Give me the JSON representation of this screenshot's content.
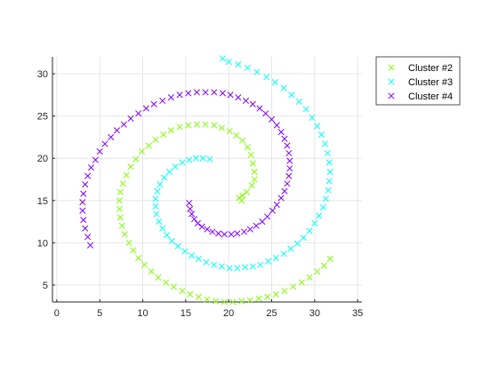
{
  "chart_data": {
    "type": "scatter",
    "title": "",
    "xlabel": "",
    "ylabel": "",
    "xlim": [
      -0.5,
      35.5
    ],
    "ylim": [
      3,
      32
    ],
    "xticks": [
      0,
      5,
      10,
      15,
      20,
      25,
      30,
      35
    ],
    "yticks": [
      5,
      10,
      15,
      20,
      25,
      30
    ],
    "grid": true,
    "legend": "top-right-outside",
    "marker": "x",
    "series": [
      {
        "name": "Cluster #2",
        "color": "#80ff00",
        "points": [
          [
            21.5,
            15.0
          ],
          [
            21.2,
            15.3
          ],
          [
            21.6,
            15.6
          ],
          [
            22.1,
            16.0
          ],
          [
            22.7,
            16.8
          ],
          [
            23.0,
            17.5
          ],
          [
            23.0,
            18.4
          ],
          [
            22.8,
            19.4
          ],
          [
            22.6,
            20.4
          ],
          [
            22.2,
            21.3
          ],
          [
            21.6,
            22.1
          ],
          [
            20.9,
            22.7
          ],
          [
            20.1,
            23.2
          ],
          [
            19.2,
            23.6
          ],
          [
            18.3,
            23.9
          ],
          [
            17.3,
            24.0
          ],
          [
            16.3,
            24.0
          ],
          [
            15.3,
            23.9
          ],
          [
            14.3,
            23.7
          ],
          [
            13.3,
            23.3
          ],
          [
            12.4,
            22.8
          ],
          [
            11.5,
            22.2
          ],
          [
            10.7,
            21.5
          ],
          [
            9.9,
            20.8
          ],
          [
            9.2,
            19.9
          ],
          [
            8.6,
            19.0
          ],
          [
            8.1,
            18.0
          ],
          [
            7.7,
            17.0
          ],
          [
            7.4,
            16.0
          ],
          [
            7.3,
            15.0
          ],
          [
            7.3,
            14.0
          ],
          [
            7.4,
            13.0
          ],
          [
            7.6,
            12.0
          ],
          [
            7.9,
            11.0
          ],
          [
            8.4,
            10.0
          ],
          [
            8.9,
            9.1
          ],
          [
            9.5,
            8.2
          ],
          [
            10.2,
            7.4
          ],
          [
            11.0,
            6.6
          ],
          [
            11.8,
            5.9
          ],
          [
            12.7,
            5.3
          ],
          [
            13.6,
            4.8
          ],
          [
            14.6,
            4.3
          ],
          [
            15.5,
            3.9
          ],
          [
            16.5,
            3.6
          ],
          [
            17.5,
            3.3
          ],
          [
            18.5,
            3.1
          ],
          [
            19.5,
            3.0
          ],
          [
            20.5,
            3.0
          ],
          [
            21.5,
            3.1
          ],
          [
            22.5,
            3.2
          ],
          [
            23.5,
            3.4
          ],
          [
            24.5,
            3.6
          ],
          [
            25.5,
            3.9
          ],
          [
            26.5,
            4.3
          ],
          [
            27.5,
            4.8
          ],
          [
            28.5,
            5.3
          ],
          [
            29.4,
            5.9
          ],
          [
            30.3,
            6.6
          ],
          [
            31.1,
            7.3
          ],
          [
            31.8,
            8.1
          ]
        ]
      },
      {
        "name": "Cluster #3",
        "color": "#00ffff",
        "points": [
          [
            17.8,
            19.9
          ],
          [
            17.0,
            20.0
          ],
          [
            16.2,
            20.0
          ],
          [
            15.4,
            19.8
          ],
          [
            14.6,
            19.5
          ],
          [
            13.8,
            19.0
          ],
          [
            13.1,
            18.4
          ],
          [
            12.5,
            17.7
          ],
          [
            12.0,
            16.9
          ],
          [
            11.7,
            16.1
          ],
          [
            11.5,
            15.2
          ],
          [
            11.5,
            14.3
          ],
          [
            11.6,
            13.4
          ],
          [
            11.9,
            12.5
          ],
          [
            12.3,
            11.7
          ],
          [
            12.8,
            10.9
          ],
          [
            13.4,
            10.2
          ],
          [
            14.1,
            9.6
          ],
          [
            14.9,
            9.0
          ],
          [
            15.7,
            8.5
          ],
          [
            16.5,
            8.1
          ],
          [
            17.4,
            7.7
          ],
          [
            18.3,
            7.4
          ],
          [
            19.2,
            7.2
          ],
          [
            20.1,
            7.0
          ],
          [
            21.0,
            7.0
          ],
          [
            21.9,
            7.1
          ],
          [
            22.8,
            7.2
          ],
          [
            23.7,
            7.4
          ],
          [
            24.6,
            7.8
          ],
          [
            25.5,
            8.2
          ],
          [
            26.4,
            8.7
          ],
          [
            27.2,
            9.3
          ],
          [
            28.0,
            9.9
          ],
          [
            28.7,
            10.6
          ],
          [
            29.4,
            11.4
          ],
          [
            30.0,
            12.3
          ],
          [
            30.5,
            13.2
          ],
          [
            31.0,
            14.2
          ],
          [
            31.3,
            15.2
          ],
          [
            31.6,
            16.2
          ],
          [
            31.7,
            17.3
          ],
          [
            31.8,
            18.4
          ],
          [
            31.7,
            19.5
          ],
          [
            31.5,
            20.6
          ],
          [
            31.2,
            21.7
          ],
          [
            30.8,
            22.8
          ],
          [
            30.3,
            23.8
          ],
          [
            29.7,
            24.8
          ],
          [
            29.0,
            25.8
          ],
          [
            28.2,
            26.7
          ],
          [
            27.3,
            27.5
          ],
          [
            26.4,
            28.3
          ],
          [
            25.4,
            29.0
          ],
          [
            24.4,
            29.6
          ],
          [
            23.3,
            30.2
          ],
          [
            22.2,
            30.7
          ],
          [
            21.1,
            31.1
          ],
          [
            20.0,
            31.4
          ],
          [
            19.3,
            31.8
          ]
        ]
      },
      {
        "name": "Cluster #4",
        "color": "#8000ff",
        "points": [
          [
            15.4,
            14.7
          ],
          [
            15.5,
            14.0
          ],
          [
            15.7,
            13.4
          ],
          [
            16.0,
            12.8
          ],
          [
            16.4,
            12.3
          ],
          [
            16.9,
            11.9
          ],
          [
            17.5,
            11.6
          ],
          [
            18.1,
            11.3
          ],
          [
            18.8,
            11.1
          ],
          [
            19.5,
            11.0
          ],
          [
            20.3,
            11.0
          ],
          [
            21.0,
            11.1
          ],
          [
            21.8,
            11.3
          ],
          [
            22.5,
            11.6
          ],
          [
            23.2,
            12.0
          ],
          [
            23.9,
            12.5
          ],
          [
            24.5,
            13.1
          ],
          [
            25.1,
            13.8
          ],
          [
            25.6,
            14.5
          ],
          [
            26.1,
            15.3
          ],
          [
            26.5,
            16.1
          ],
          [
            26.8,
            17.0
          ],
          [
            27.0,
            17.9
          ],
          [
            27.1,
            18.8
          ],
          [
            27.1,
            19.7
          ],
          [
            27.0,
            20.6
          ],
          [
            26.8,
            21.5
          ],
          [
            26.5,
            22.3
          ],
          [
            26.1,
            23.1
          ],
          [
            25.6,
            23.9
          ],
          [
            25.0,
            24.6
          ],
          [
            24.3,
            25.3
          ],
          [
            23.6,
            25.9
          ],
          [
            22.8,
            26.4
          ],
          [
            22.0,
            26.8
          ],
          [
            21.1,
            27.2
          ],
          [
            20.2,
            27.5
          ],
          [
            19.3,
            27.7
          ],
          [
            18.3,
            27.8
          ],
          [
            17.3,
            27.8
          ],
          [
            16.3,
            27.8
          ],
          [
            15.3,
            27.7
          ],
          [
            14.3,
            27.5
          ],
          [
            13.3,
            27.2
          ],
          [
            12.3,
            26.8
          ],
          [
            11.3,
            26.4
          ],
          [
            10.4,
            25.9
          ],
          [
            9.5,
            25.3
          ],
          [
            8.6,
            24.7
          ],
          [
            7.8,
            24.0
          ],
          [
            7.0,
            23.3
          ],
          [
            6.3,
            22.5
          ],
          [
            5.6,
            21.7
          ],
          [
            5.0,
            20.8
          ],
          [
            4.5,
            19.8
          ],
          [
            4.0,
            18.9
          ],
          [
            3.6,
            17.9
          ],
          [
            3.3,
            16.9
          ],
          [
            3.1,
            15.8
          ],
          [
            3.0,
            14.8
          ],
          [
            3.0,
            13.8
          ],
          [
            3.1,
            12.7
          ],
          [
            3.3,
            11.7
          ],
          [
            3.6,
            10.7
          ],
          [
            3.9,
            9.7
          ]
        ]
      }
    ]
  }
}
